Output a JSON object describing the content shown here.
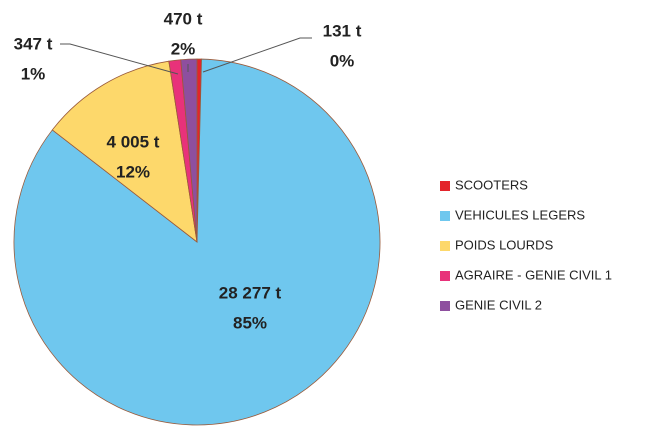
{
  "chart_data": {
    "type": "pie",
    "categories": [
      "SCOOTERS",
      "VEHICULES LEGERS",
      "POIDS LOURDS",
      "AGRAIRE - GENIE CIVIL 1",
      "GENIE CIVIL 2"
    ],
    "values": [
      131,
      28277,
      4005,
      347,
      470
    ],
    "value_labels": [
      "131 t",
      "28 277 t",
      "4 005 t",
      "347 t",
      "470 t"
    ],
    "percent_labels": [
      "0%",
      "85%",
      "12%",
      "1%",
      "2%"
    ],
    "colors": [
      "#e3242b",
      "#6fc7ee",
      "#fdd86b",
      "#e8327a",
      "#8e4f9f"
    ],
    "legend": "right"
  }
}
